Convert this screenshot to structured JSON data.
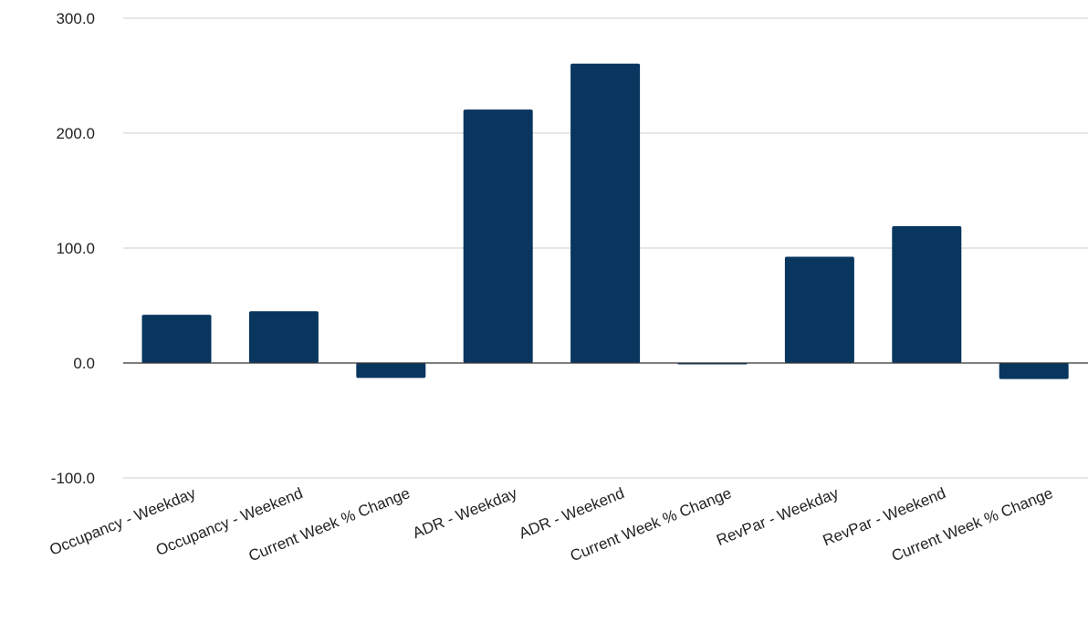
{
  "chart_data": {
    "type": "bar",
    "categories": [
      "Occupancy - Weekday",
      "Occupancy  - Weekend",
      "Current Week % Change",
      "ADR - Weekday",
      "ADR - Weekend",
      "Current Week % Change",
      "RevPar - Weekday",
      "RevPar - Weekend",
      "Current Week % Change"
    ],
    "values": [
      42.0,
      45.0,
      -13.0,
      220.5,
      260.5,
      -1.0,
      92.5,
      119.0,
      -14.0
    ],
    "title": "",
    "xlabel": "",
    "ylabel": "",
    "ylim": [
      -100,
      300
    ],
    "yticks": [
      300,
      200,
      100,
      0,
      -100
    ],
    "ytick_labels": [
      "300.0",
      "200.0",
      "100.0",
      "0.0",
      "-100.0"
    ],
    "grid": true,
    "legend": "none",
    "bar_color": "#08365f",
    "grid_color": "#cccccc",
    "zero_line_color": "#333333"
  }
}
